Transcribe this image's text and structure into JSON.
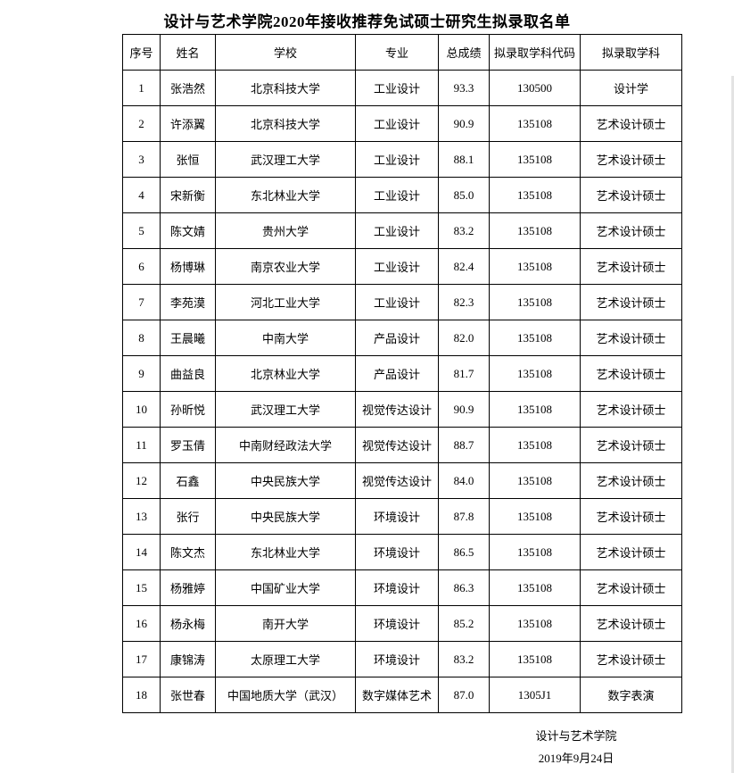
{
  "page": {
    "title": "设计与艺术学院2020年接收推荐免试硕士研究生拟录取名单"
  },
  "table": {
    "headers": [
      "序号",
      "姓名",
      "学校",
      "专业",
      "总成绩",
      "拟录取学科代码",
      "拟录取学科"
    ],
    "rows": [
      [
        "1",
        "张浩然",
        "北京科技大学",
        "工业设计",
        "93.3",
        "130500",
        "设计学"
      ],
      [
        "2",
        "许添翼",
        "北京科技大学",
        "工业设计",
        "90.9",
        "135108",
        "艺术设计硕士"
      ],
      [
        "3",
        "张恒",
        "武汉理工大学",
        "工业设计",
        "88.1",
        "135108",
        "艺术设计硕士"
      ],
      [
        "4",
        "宋新衡",
        "东北林业大学",
        "工业设计",
        "85.0",
        "135108",
        "艺术设计硕士"
      ],
      [
        "5",
        "陈文婧",
        "贵州大学",
        "工业设计",
        "83.2",
        "135108",
        "艺术设计硕士"
      ],
      [
        "6",
        "杨博琳",
        "南京农业大学",
        "工业设计",
        "82.4",
        "135108",
        "艺术设计硕士"
      ],
      [
        "7",
        "李苑漠",
        "河北工业大学",
        "工业设计",
        "82.3",
        "135108",
        "艺术设计硕士"
      ],
      [
        "8",
        "王晨曦",
        "中南大学",
        "产品设计",
        "82.0",
        "135108",
        "艺术设计硕士"
      ],
      [
        "9",
        "曲益良",
        "北京林业大学",
        "产品设计",
        "81.7",
        "135108",
        "艺术设计硕士"
      ],
      [
        "10",
        "孙昕悦",
        "武汉理工大学",
        "视觉传达设计",
        "90.9",
        "135108",
        "艺术设计硕士"
      ],
      [
        "11",
        "罗玉倩",
        "中南财经政法大学",
        "视觉传达设计",
        "88.7",
        "135108",
        "艺术设计硕士"
      ],
      [
        "12",
        "石鑫",
        "中央民族大学",
        "视觉传达设计",
        "84.0",
        "135108",
        "艺术设计硕士"
      ],
      [
        "13",
        "张行",
        "中央民族大学",
        "环境设计",
        "87.8",
        "135108",
        "艺术设计硕士"
      ],
      [
        "14",
        "陈文杰",
        "东北林业大学",
        "环境设计",
        "86.5",
        "135108",
        "艺术设计硕士"
      ],
      [
        "15",
        "杨雅婷",
        "中国矿业大学",
        "环境设计",
        "86.3",
        "135108",
        "艺术设计硕士"
      ],
      [
        "16",
        "杨永梅",
        "南开大学",
        "环境设计",
        "85.2",
        "135108",
        "艺术设计硕士"
      ],
      [
        "17",
        "康锦涛",
        "太原理工大学",
        "环境设计",
        "83.2",
        "135108",
        "艺术设计硕士"
      ],
      [
        "18",
        "张世春",
        "中国地质大学（武汉）",
        "数字媒体艺术",
        "87.0",
        "1305J1",
        "数字表演"
      ]
    ]
  },
  "footer": {
    "signature": "设计与艺术学院",
    "date": "2019年9月24日"
  }
}
